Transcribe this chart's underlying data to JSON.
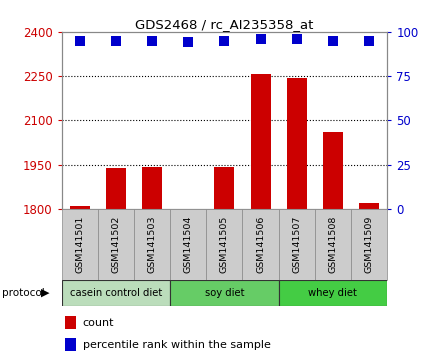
{
  "title": "GDS2468 / rc_AI235358_at",
  "samples": [
    "GSM141501",
    "GSM141502",
    "GSM141503",
    "GSM141504",
    "GSM141505",
    "GSM141506",
    "GSM141507",
    "GSM141508",
    "GSM141509"
  ],
  "bar_values": [
    1810,
    1940,
    1942,
    1800,
    1942,
    2258,
    2243,
    2060,
    1820
  ],
  "percentile_values": [
    95,
    95,
    95,
    94,
    95,
    96,
    96,
    95,
    95
  ],
  "ylim_left": [
    1800,
    2400
  ],
  "ylim_right": [
    0,
    100
  ],
  "yticks_left": [
    1800,
    1950,
    2100,
    2250,
    2400
  ],
  "yticks_right": [
    0,
    25,
    50,
    75,
    100
  ],
  "bar_color": "#cc0000",
  "dot_color": "#0000cc",
  "grid_color": "#000000",
  "protocols": [
    {
      "label": "casein control diet",
      "start": 0,
      "end": 3,
      "color": "#bbddbb"
    },
    {
      "label": "soy diet",
      "start": 3,
      "end": 6,
      "color": "#66cc66"
    },
    {
      "label": "whey diet",
      "start": 6,
      "end": 9,
      "color": "#44cc44"
    }
  ],
  "protocol_label": "protocol",
  "legend_count_label": "count",
  "legend_percentile_label": "percentile rank within the sample",
  "background_color": "#ffffff",
  "tick_label_color_left": "#cc0000",
  "tick_label_color_right": "#0000cc",
  "bar_width": 0.55,
  "dot_size": 55,
  "col_bg_color": "#cccccc",
  "col_border_color": "#888888"
}
